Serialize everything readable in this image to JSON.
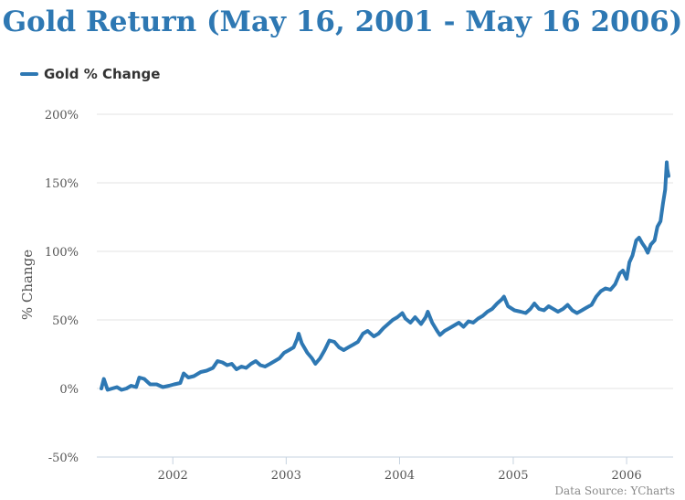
{
  "chart_data": {
    "type": "line",
    "title": "Gold Return (May 16, 2001 - May 16 2006)",
    "ylabel": "% Change",
    "xlabel": "",
    "ylim": [
      -50,
      200
    ],
    "xlim": [
      "2001-05-16",
      "2006-05-16"
    ],
    "y_ticks": [
      "-50%",
      "0%",
      "50%",
      "100%",
      "150%",
      "200%"
    ],
    "x_ticks": [
      "2002",
      "2003",
      "2004",
      "2005",
      "2006"
    ],
    "grid": true,
    "legend_position": "top-left",
    "source": "Data Source: YCharts",
    "series": [
      {
        "name": "Gold % Change",
        "color": "#2e78b3",
        "points": [
          [
            "2001-05-16",
            0
          ],
          [
            "2001-05-24",
            7
          ],
          [
            "2001-06-05",
            -1
          ],
          [
            "2001-06-20",
            0
          ],
          [
            "2001-07-05",
            1
          ],
          [
            "2001-07-20",
            -1
          ],
          [
            "2001-08-05",
            0
          ],
          [
            "2001-08-20",
            2
          ],
          [
            "2001-09-05",
            1
          ],
          [
            "2001-09-15",
            8
          ],
          [
            "2001-10-01",
            7
          ],
          [
            "2001-10-20",
            3
          ],
          [
            "2001-11-10",
            3
          ],
          [
            "2001-11-30",
            1
          ],
          [
            "2001-12-20",
            2
          ],
          [
            "2002-01-05",
            3
          ],
          [
            "2002-01-25",
            4
          ],
          [
            "2002-02-05",
            11
          ],
          [
            "2002-02-20",
            8
          ],
          [
            "2002-03-10",
            9
          ],
          [
            "2002-04-01",
            12
          ],
          [
            "2002-04-20",
            13
          ],
          [
            "2002-05-10",
            15
          ],
          [
            "2002-05-25",
            20
          ],
          [
            "2002-06-10",
            19
          ],
          [
            "2002-06-25",
            17
          ],
          [
            "2002-07-10",
            18
          ],
          [
            "2002-07-25",
            14
          ],
          [
            "2002-08-10",
            16
          ],
          [
            "2002-08-25",
            15
          ],
          [
            "2002-09-10",
            18
          ],
          [
            "2002-09-25",
            20
          ],
          [
            "2002-10-10",
            17
          ],
          [
            "2002-10-25",
            16
          ],
          [
            "2002-11-10",
            18
          ],
          [
            "2002-11-25",
            20
          ],
          [
            "2002-12-10",
            22
          ],
          [
            "2002-12-25",
            26
          ],
          [
            "2003-01-10",
            28
          ],
          [
            "2003-01-25",
            30
          ],
          [
            "2003-02-05",
            36
          ],
          [
            "2003-02-10",
            40
          ],
          [
            "2003-02-20",
            33
          ],
          [
            "2003-03-10",
            26
          ],
          [
            "2003-03-25",
            22
          ],
          [
            "2003-04-05",
            18
          ],
          [
            "2003-04-20",
            22
          ],
          [
            "2003-05-05",
            28
          ],
          [
            "2003-05-20",
            35
          ],
          [
            "2003-06-05",
            34
          ],
          [
            "2003-06-20",
            30
          ],
          [
            "2003-07-05",
            28
          ],
          [
            "2003-07-20",
            30
          ],
          [
            "2003-08-05",
            32
          ],
          [
            "2003-08-20",
            34
          ],
          [
            "2003-09-05",
            40
          ],
          [
            "2003-09-20",
            42
          ],
          [
            "2003-10-10",
            38
          ],
          [
            "2003-10-25",
            40
          ],
          [
            "2003-11-10",
            44
          ],
          [
            "2003-11-25",
            47
          ],
          [
            "2003-12-10",
            50
          ],
          [
            "2003-12-25",
            52
          ],
          [
            "2004-01-10",
            55
          ],
          [
            "2004-01-20",
            51
          ],
          [
            "2004-02-05",
            48
          ],
          [
            "2004-02-20",
            52
          ],
          [
            "2004-03-10",
            47
          ],
          [
            "2004-03-25",
            52
          ],
          [
            "2004-04-01",
            56
          ],
          [
            "2004-04-15",
            48
          ],
          [
            "2004-05-01",
            42
          ],
          [
            "2004-05-10",
            39
          ],
          [
            "2004-05-25",
            42
          ],
          [
            "2004-06-10",
            44
          ],
          [
            "2004-06-25",
            46
          ],
          [
            "2004-07-10",
            48
          ],
          [
            "2004-07-25",
            45
          ],
          [
            "2004-08-10",
            49
          ],
          [
            "2004-08-25",
            48
          ],
          [
            "2004-09-10",
            51
          ],
          [
            "2004-09-25",
            53
          ],
          [
            "2004-10-10",
            56
          ],
          [
            "2004-10-25",
            58
          ],
          [
            "2004-11-10",
            62
          ],
          [
            "2004-11-25",
            65
          ],
          [
            "2004-12-02",
            67
          ],
          [
            "2004-12-15",
            60
          ],
          [
            "2005-01-05",
            57
          ],
          [
            "2005-01-25",
            56
          ],
          [
            "2005-02-10",
            55
          ],
          [
            "2005-02-25",
            58
          ],
          [
            "2005-03-10",
            62
          ],
          [
            "2005-03-25",
            58
          ],
          [
            "2005-04-10",
            57
          ],
          [
            "2005-04-25",
            60
          ],
          [
            "2005-05-10",
            58
          ],
          [
            "2005-05-25",
            56
          ],
          [
            "2005-06-10",
            58
          ],
          [
            "2005-06-25",
            61
          ],
          [
            "2005-07-10",
            57
          ],
          [
            "2005-07-25",
            55
          ],
          [
            "2005-08-10",
            57
          ],
          [
            "2005-08-25",
            59
          ],
          [
            "2005-09-10",
            61
          ],
          [
            "2005-09-25",
            67
          ],
          [
            "2005-10-10",
            71
          ],
          [
            "2005-10-25",
            73
          ],
          [
            "2005-11-10",
            72
          ],
          [
            "2005-11-25",
            76
          ],
          [
            "2005-12-10",
            84
          ],
          [
            "2005-12-20",
            86
          ],
          [
            "2006-01-01",
            80
          ],
          [
            "2006-01-10",
            92
          ],
          [
            "2006-01-20",
            97
          ],
          [
            "2006-02-01",
            108
          ],
          [
            "2006-02-10",
            110
          ],
          [
            "2006-02-20",
            106
          ],
          [
            "2006-03-01",
            103
          ],
          [
            "2006-03-10",
            99
          ],
          [
            "2006-03-20",
            105
          ],
          [
            "2006-04-01",
            108
          ],
          [
            "2006-04-10",
            118
          ],
          [
            "2006-04-20",
            122
          ],
          [
            "2006-04-28",
            135
          ],
          [
            "2006-05-05",
            145
          ],
          [
            "2006-05-10",
            165
          ],
          [
            "2006-05-12",
            160
          ],
          [
            "2006-05-16",
            155
          ]
        ]
      }
    ]
  }
}
